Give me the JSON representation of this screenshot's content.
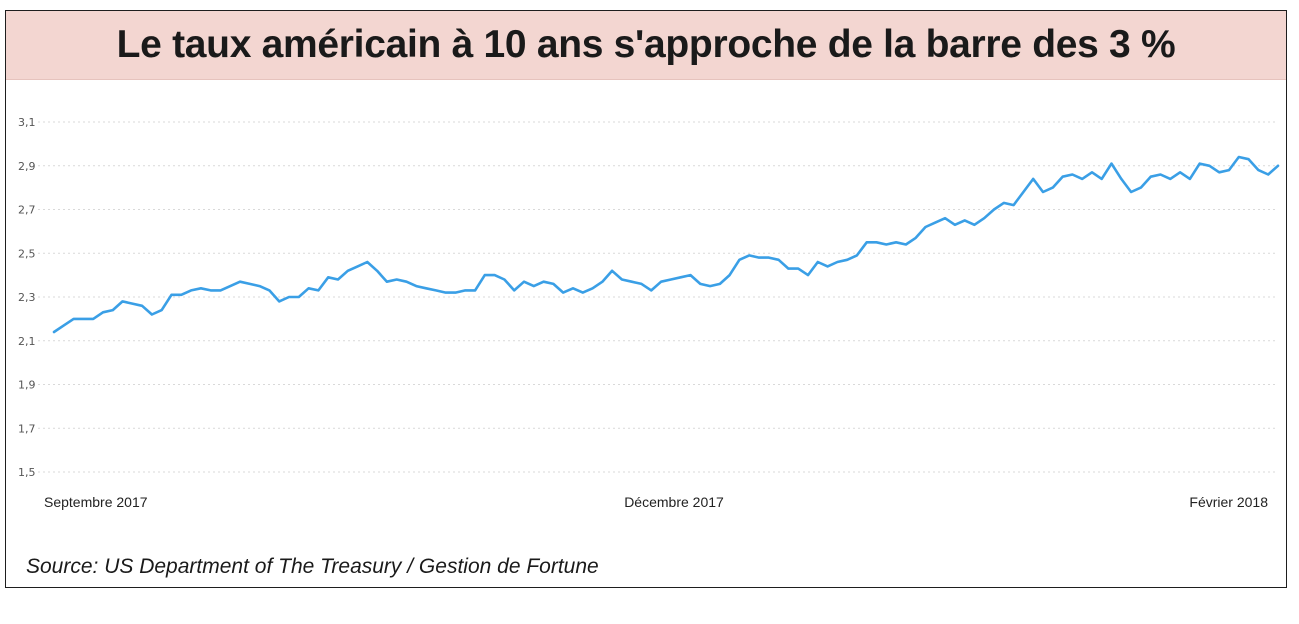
{
  "title": "Le taux américain à 10 ans s'approche de la barre des 3 %",
  "source": "Source: US Department of The Treasury / Gestion de Fortune",
  "colors": {
    "line": "#3a9fe6",
    "title_bg": "#f3d6d1",
    "grid": "#d9d9d9"
  },
  "chart_data": {
    "type": "line",
    "title": "Le taux américain à 10 ans s'approche de la barre des 3 %",
    "xlabel": "",
    "ylabel": "",
    "ylim": [
      1.5,
      3.1
    ],
    "y_ticks": [
      1.5,
      1.7,
      1.9,
      2.1,
      2.3,
      2.5,
      2.7,
      2.9,
      3.1
    ],
    "y_tick_labels": [
      "1,5",
      "1,7",
      "1,9",
      "2,1",
      "2,3",
      "2,5",
      "2,7",
      "2,9",
      "3,1"
    ],
    "grid": true,
    "x_labels": [
      {
        "label": "Septembre 2017",
        "at": 0
      },
      {
        "label": "Décembre 2017",
        "at": 0.5
      },
      {
        "label": "Février 2018",
        "at": 1
      }
    ],
    "series": [
      {
        "values": [
          2.14,
          2.17,
          2.2,
          2.2,
          2.2,
          2.23,
          2.24,
          2.28,
          2.27,
          2.26,
          2.22,
          2.24,
          2.31,
          2.31,
          2.33,
          2.34,
          2.33,
          2.33,
          2.35,
          2.37,
          2.36,
          2.35,
          2.33,
          2.28,
          2.3,
          2.3,
          2.34,
          2.33,
          2.39,
          2.38,
          2.42,
          2.44,
          2.46,
          2.42,
          2.37,
          2.38,
          2.37,
          2.35,
          2.34,
          2.33,
          2.32,
          2.32,
          2.33,
          2.33,
          2.4,
          2.4,
          2.38,
          2.33,
          2.37,
          2.35,
          2.37,
          2.36,
          2.32,
          2.34,
          2.32,
          2.34,
          2.37,
          2.42,
          2.38,
          2.37,
          2.36,
          2.33,
          2.37,
          2.38,
          2.39,
          2.4,
          2.36,
          2.35,
          2.36,
          2.4,
          2.47,
          2.49,
          2.48,
          2.48,
          2.47,
          2.43,
          2.43,
          2.4,
          2.46,
          2.44,
          2.46,
          2.47,
          2.49,
          2.55,
          2.55,
          2.54,
          2.55,
          2.54,
          2.57,
          2.62,
          2.64,
          2.66,
          2.63,
          2.65,
          2.63,
          2.66,
          2.7,
          2.73,
          2.72,
          2.78,
          2.84,
          2.78,
          2.8,
          2.85,
          2.86,
          2.84,
          2.87,
          2.84,
          2.91,
          2.84,
          2.78,
          2.8,
          2.85,
          2.86,
          2.84,
          2.87,
          2.84,
          2.91,
          2.9,
          2.87,
          2.88,
          2.94,
          2.93,
          2.88,
          2.86,
          2.9
        ]
      }
    ]
  }
}
